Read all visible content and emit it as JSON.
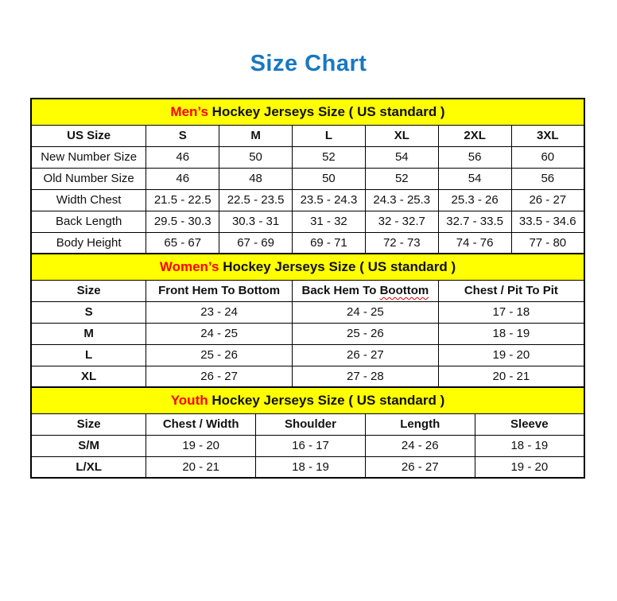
{
  "page_title": "Size Chart",
  "colors": {
    "title_blue": "#1778C2",
    "section_yellow": "#FFFF00",
    "accent_red": "#FF0000",
    "squiggle_red": "#E00000"
  },
  "sections": [
    {
      "name": "mens",
      "title_highlight": "Men’s",
      "title_rest": "Hockey Jerseys Size ( US standard )",
      "label_bold": false,
      "columns": [
        {
          "label": "US Size"
        },
        {
          "label": "S"
        },
        {
          "label": "M"
        },
        {
          "label": "L"
        },
        {
          "label": "XL"
        },
        {
          "label": "2XL"
        },
        {
          "label": "3XL"
        }
      ],
      "rows": [
        {
          "label": "New Number Size",
          "values": [
            "46",
            "50",
            "52",
            "54",
            "56",
            "60"
          ]
        },
        {
          "label": "Old Number Size",
          "values": [
            "46",
            "48",
            "50",
            "52",
            "54",
            "56"
          ]
        },
        {
          "label": "Width Chest",
          "values": [
            "21.5 - 22.5",
            "22.5 - 23.5",
            "23.5 - 24.3",
            "24.3 - 25.3",
            "25.3 - 26",
            "26 - 27"
          ]
        },
        {
          "label": "Back Length",
          "values": [
            "29.5 - 30.3",
            "30.3 - 31",
            "31 - 32",
            "32 - 32.7",
            "32.7 - 33.5",
            "33.5 - 34.6"
          ]
        },
        {
          "label": "Body Height",
          "values": [
            "65 - 67",
            "67 - 69",
            "69 - 71",
            "72 - 73",
            "74 - 76",
            "77 - 80"
          ]
        }
      ]
    },
    {
      "name": "womens",
      "title_highlight": "Women’s",
      "title_rest": "Hockey Jerseys Size ( US standard )",
      "label_bold": true,
      "columns": [
        {
          "label": "Size"
        },
        {
          "label": "Front Hem To Bottom"
        },
        {
          "label": "Back Hem To",
          "misspelled": "Boottom"
        },
        {
          "label": "Chest / Pit To Pit"
        }
      ],
      "rows": [
        {
          "label": "S",
          "values": [
            "23 - 24",
            "24 - 25",
            "17 - 18"
          ]
        },
        {
          "label": "M",
          "values": [
            "24 - 25",
            "25 - 26",
            "18 - 19"
          ]
        },
        {
          "label": "L",
          "values": [
            "25 - 26",
            "26 - 27",
            "19 - 20"
          ]
        },
        {
          "label": "XL",
          "values": [
            "26 - 27",
            "27 - 28",
            "20 - 21"
          ]
        }
      ]
    },
    {
      "name": "youth",
      "title_highlight": "Youth",
      "title_rest": "Hockey Jerseys Size ( US standard )",
      "label_bold": true,
      "columns": [
        {
          "label": "Size"
        },
        {
          "label": "Chest / Width"
        },
        {
          "label": "Shoulder"
        },
        {
          "label": "Length"
        },
        {
          "label": "Sleeve"
        }
      ],
      "rows": [
        {
          "label": "S/M",
          "values": [
            "19 - 20",
            "16 - 17",
            "24 - 26",
            "18 - 19"
          ]
        },
        {
          "label": "L/XL",
          "values": [
            "20 - 21",
            "18 - 19",
            "26 - 27",
            "19 - 20"
          ]
        }
      ]
    }
  ]
}
